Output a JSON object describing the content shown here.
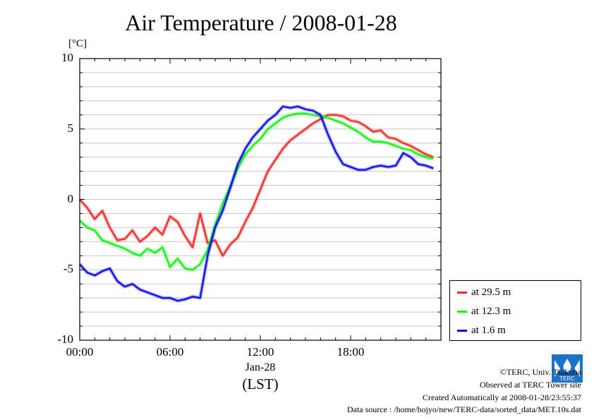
{
  "chart_data": {
    "type": "line",
    "title": "Air Temperature / 2008-01-28",
    "ylabel": "[°C]",
    "xlabel": "(LST)",
    "x_date_label": "Jan-28",
    "ylim": [
      -10,
      10
    ],
    "y_ticks": [
      "10",
      "5",
      "0",
      "-5",
      "-10"
    ],
    "x_ticks": [
      "00:00",
      "06:00",
      "12:00",
      "18:00"
    ],
    "grid": true,
    "legend_position": "bottom-right",
    "x_hours": [
      0,
      0.5,
      1,
      1.5,
      2,
      2.5,
      3,
      3.5,
      4,
      4.5,
      5,
      5.5,
      6,
      6.5,
      7,
      7.5,
      8,
      8.5,
      9,
      9.5,
      10,
      10.5,
      11,
      11.5,
      12,
      12.5,
      13,
      13.5,
      14,
      14.5,
      15,
      15.5,
      16,
      16.5,
      17,
      17.5,
      18,
      18.5,
      19,
      19.5,
      20,
      20.5,
      21,
      21.5,
      22,
      22.5,
      23,
      23.5
    ],
    "series": [
      {
        "name": "at 29.5 m",
        "color": "#ff2020",
        "values": [
          0.0,
          -0.6,
          -1.4,
          -0.8,
          -2.0,
          -2.9,
          -2.8,
          -2.2,
          -3.0,
          -2.6,
          -2.0,
          -2.5,
          -1.2,
          -1.6,
          -2.6,
          -3.4,
          -1.0,
          -3.1,
          -2.9,
          -4.0,
          -3.2,
          -2.7,
          -1.6,
          -0.6,
          0.7,
          2.0,
          2.8,
          3.6,
          4.2,
          4.6,
          5.0,
          5.4,
          5.7,
          6.0,
          6.0,
          5.9,
          5.6,
          5.5,
          5.2,
          4.8,
          4.9,
          4.4,
          4.3,
          4.0,
          3.8,
          3.5,
          3.2,
          3.0
        ]
      },
      {
        "name": "at 12.3 m",
        "color": "#00ff00",
        "values": [
          -1.5,
          -2.0,
          -2.2,
          -2.9,
          -3.1,
          -3.3,
          -3.5,
          -3.8,
          -4.0,
          -3.5,
          -3.8,
          -3.4,
          -4.8,
          -4.2,
          -4.9,
          -5.0,
          -4.6,
          -3.6,
          -1.8,
          -0.3,
          0.9,
          2.2,
          3.2,
          3.8,
          4.3,
          5.0,
          5.4,
          5.8,
          6.0,
          6.1,
          6.1,
          6.0,
          5.9,
          5.8,
          5.6,
          5.4,
          5.1,
          4.8,
          4.4,
          4.1,
          4.1,
          4.0,
          3.8,
          3.6,
          3.5,
          3.2,
          3.0,
          2.9
        ]
      },
      {
        "name": "at 1.6 m",
        "color": "#0000ff",
        "values": [
          -4.6,
          -5.2,
          -5.4,
          -5.1,
          -4.9,
          -5.8,
          -6.2,
          -6.0,
          -6.4,
          -6.6,
          -6.8,
          -7.0,
          -7.0,
          -7.2,
          -7.1,
          -6.9,
          -7.0,
          -4.0,
          -2.0,
          -0.8,
          0.8,
          2.5,
          3.6,
          4.4,
          5.0,
          5.6,
          6.0,
          6.6,
          6.5,
          6.6,
          6.4,
          6.3,
          6.0,
          4.6,
          3.4,
          2.5,
          2.3,
          2.1,
          2.1,
          2.3,
          2.4,
          2.3,
          2.4,
          3.3,
          3.0,
          2.5,
          2.4,
          2.2
        ]
      }
    ]
  },
  "footer": {
    "credit": "©TERC, Univ. Tsukuba",
    "site": "Observed at TERC Tower site",
    "created": "Created Automatically at 2008-01-28/23:55:37",
    "source": "Data source : /home/hojyo/new/TERC-data/sorted_data/MET.10s.dat"
  },
  "logo": {
    "text": "TERC",
    "color": "#1a73c8",
    "icon": "terc-logo-icon"
  }
}
